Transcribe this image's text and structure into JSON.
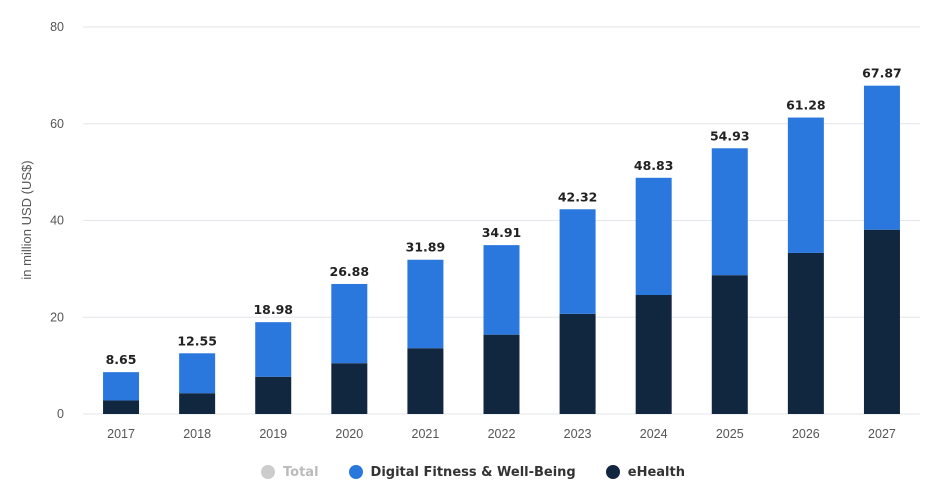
{
  "chart_data": {
    "type": "bar",
    "stacked": true,
    "ylabel": "in million USD (US$)",
    "ylim": [
      0,
      80
    ],
    "yticks": [
      0,
      20,
      40,
      60,
      80
    ],
    "grid": true,
    "legend_position": "bottom",
    "categories": [
      "2017",
      "2018",
      "2019",
      "2020",
      "2021",
      "2022",
      "2023",
      "2024",
      "2025",
      "2026",
      "2027"
    ],
    "series": [
      {
        "name": "eHealth",
        "color": "#11263f",
        "values": [
          2.8,
          4.3,
          7.7,
          10.5,
          13.6,
          16.4,
          20.7,
          24.6,
          28.7,
          33.3,
          38.1
        ]
      },
      {
        "name": "Digital Fitness & Well-Being",
        "color": "#2a78dd",
        "values": [
          5.85,
          8.25,
          11.28,
          16.38,
          18.29,
          18.51,
          21.62,
          24.23,
          26.23,
          27.98,
          29.77
        ]
      }
    ],
    "totals": [
      "8.65",
      "12.55",
      "18.98",
      "26.88",
      "31.89",
      "34.91",
      "42.32",
      "48.83",
      "54.93",
      "61.28",
      "67.87"
    ],
    "legend": [
      {
        "label": "Total",
        "color": "#cccccc",
        "text_color": "#bbbbbb"
      },
      {
        "label": "Digital Fitness & Well-Being",
        "color": "#2a78dd",
        "text_color": "#333333"
      },
      {
        "label": "eHealth",
        "color": "#11263f",
        "text_color": "#333333"
      }
    ]
  }
}
